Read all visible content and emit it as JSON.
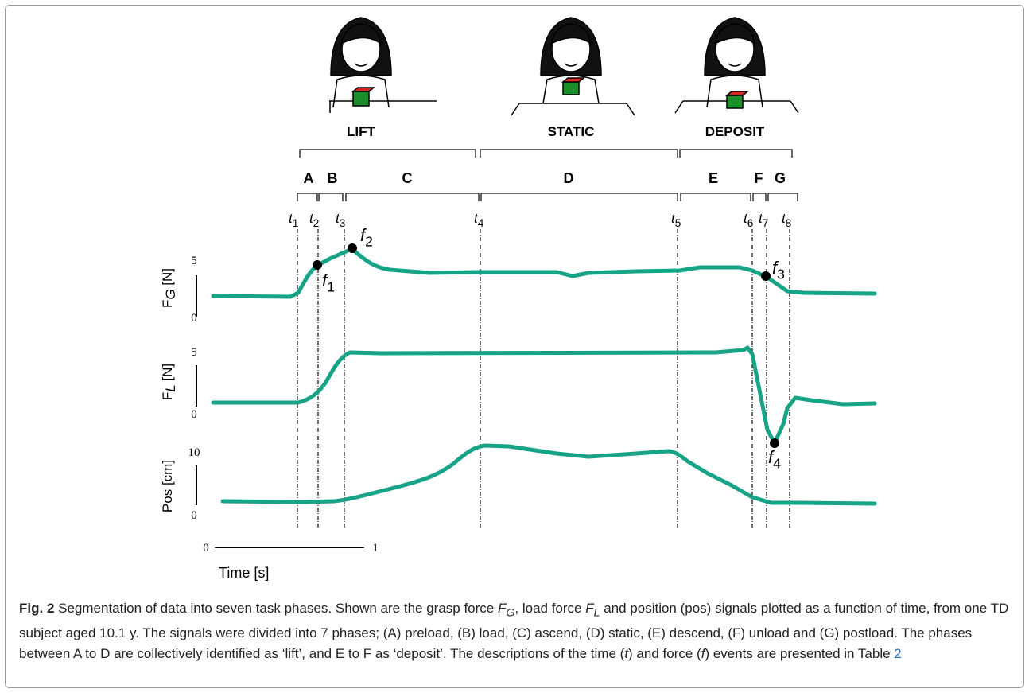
{
  "phases": [
    "LIFT",
    "STATIC",
    "DEPOSIT"
  ],
  "subphases": [
    "A",
    "B",
    "C",
    "D",
    "E",
    "F",
    "G"
  ],
  "time_events": [
    {
      "symbol": "t",
      "index": "1"
    },
    {
      "symbol": "t",
      "index": "2"
    },
    {
      "symbol": "t",
      "index": "3"
    },
    {
      "symbol": "t",
      "index": "4"
    },
    {
      "symbol": "t",
      "index": "5"
    },
    {
      "symbol": "t",
      "index": "6"
    },
    {
      "symbol": "t",
      "index": "7"
    },
    {
      "symbol": "t",
      "index": "8"
    }
  ],
  "force_events": [
    {
      "symbol": "f",
      "index": "1"
    },
    {
      "symbol": "f",
      "index": "2"
    },
    {
      "symbol": "f",
      "index": "3"
    },
    {
      "symbol": "f",
      "index": "4"
    }
  ],
  "signals": [
    {
      "label": "F",
      "sub": "G",
      "unit": "[N]",
      "scale_top": "5",
      "scale_bottom": "0"
    },
    {
      "label": "F",
      "sub": "L",
      "unit": "[N]",
      "scale_top": "5",
      "scale_bottom": "0"
    },
    {
      "label": "Pos [cm]",
      "scale_top": "10",
      "scale_bottom": "0"
    }
  ],
  "time_scale": {
    "start": "0",
    "end": "1",
    "label": "Time [s]"
  },
  "caption": {
    "label": "Fig. 2",
    "parts": [
      " Segmentation of data into seven task phases. Shown are the grasp force ",
      "F",
      "G",
      ", load force ",
      "F",
      "L",
      " and position (pos) signals plotted as a function of time, from one TD subject aged 10.1 y. The signals were divided into 7 phases; (A) preload, (B) load, (C) ascend, (D) static, (E) descend, (F) unload and (G) postload. The phases between A to D are collectively identified as ‘lift’, and E to F as ‘deposit’. The descriptions of the time (",
      "t",
      ") and force (",
      "f",
      ") events are presented in Table ",
      "2"
    ]
  }
}
